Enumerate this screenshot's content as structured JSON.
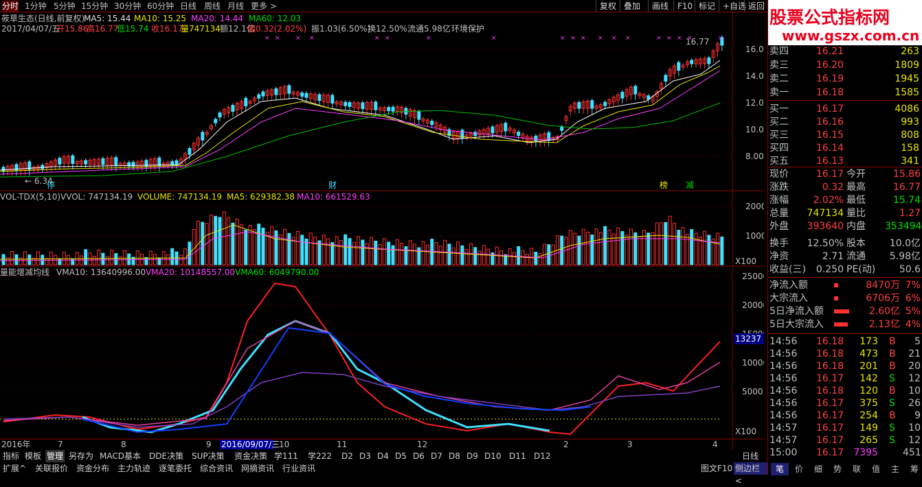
{
  "topbar": {
    "periods": [
      "分时",
      "1分钟",
      "5分钟",
      "15分钟",
      "30分钟",
      "60分钟",
      "日线",
      "周线",
      "月线",
      "更多 >"
    ],
    "active_index": 0,
    "right_buttons": [
      "复权",
      "叠加",
      "画线",
      "F10",
      "标记",
      "+自选",
      "返回"
    ]
  },
  "kline_info": {
    "name_line": "莜草生态(日线,前复权)",
    "ma5": "MA5: 15.44",
    "ma10": "MA10: 15.25",
    "ma20": "MA20: 14.44",
    "ma60": "MA60: 12.03",
    "date_line": "2017/04/07/五",
    "open": "开15.86",
    "high": "高16.77",
    "low": "低15.74",
    "close": "收16.17",
    "vol": "量747134",
    "amount": "额12.1亿",
    "range": "幅0.32(2.02%)",
    "amp": "振1.03(6.50%)",
    "turnover": "换12.50%",
    "float_cap": "流通5.98亿",
    "tag": "环境保护",
    "price_high_label": "16.77",
    "price_low_label": "6.34",
    "yaxis": [
      "16.00",
      "14.00",
      "12.00",
      "10.00",
      "8.00"
    ],
    "markers": [
      "停",
      "财",
      "榜",
      "减"
    ]
  },
  "vol_info": {
    "title": "VOL-TDX(5,10)",
    "vvol": "VVOL: 747134.19",
    "volume": "VOLUME: 747134.19",
    "ma5": "MA5: 629382.38",
    "ma10": "MA10: 661529.63",
    "yaxis": [
      "20000",
      "10000",
      "X100"
    ]
  },
  "ind_info": {
    "title": "量能增减均线",
    "vma10": "VMA10: 13640996.00",
    "vma20": "VMA20: 10148557.00",
    "vma60": "VMA60: 6049790.00",
    "yaxis": [
      "25000",
      "20000",
      "15000",
      "10000",
      "5000",
      "X100"
    ],
    "current": "13237"
  },
  "xaxis": {
    "labels": [
      "2016年",
      "7",
      "8",
      "9",
      "2016/09/07/三",
      "10",
      "11",
      "12",
      "2",
      "3",
      "4"
    ],
    "right": "日线"
  },
  "bottom": {
    "row1": [
      "指标",
      "模板",
      "管理",
      "另存为",
      "MACD基本",
      "DDE决策",
      "SUP决策",
      "资金决策",
      "学111",
      "学222",
      "D2",
      "D3",
      "D4",
      "D5",
      "D6",
      "D7",
      "D8",
      "D9",
      "D10",
      "D11",
      "D12"
    ],
    "row2": [
      "扩展^",
      "关联报价",
      "资金分布",
      "主力轨迹",
      "逐笔委托",
      "综合资讯",
      "网摘资讯",
      "行业资讯"
    ],
    "right": "图文F10",
    "side": "侧边栏<"
  },
  "quote": {
    "logo1": "股票公式指标网",
    "logo2": "www.gszx.com.cn",
    "asks": [
      {
        "label": "卖四",
        "price": "16.21",
        "vol": "263"
      },
      {
        "label": "卖三",
        "price": "16.20",
        "vol": "1809"
      },
      {
        "label": "卖二",
        "price": "16.19",
        "vol": "1945"
      },
      {
        "label": "卖一",
        "price": "16.18",
        "vol": "1585"
      }
    ],
    "bids": [
      {
        "label": "买一",
        "price": "16.17",
        "vol": "4086"
      },
      {
        "label": "买二",
        "price": "16.16",
        "vol": "993"
      },
      {
        "label": "买三",
        "price": "16.15",
        "vol": "808"
      },
      {
        "label": "买四",
        "price": "16.14",
        "vol": "158"
      },
      {
        "label": "买五",
        "price": "16.13",
        "vol": "341"
      }
    ],
    "stats": [
      {
        "l1": "现价",
        "v1": "16.17",
        "l2": "今开",
        "v2": "15.86"
      },
      {
        "l1": "涨跌",
        "v1": "0.32",
        "l2": "最高",
        "v2": "16.77"
      },
      {
        "l1": "涨幅",
        "v1": "2.02%",
        "l2": "最低",
        "v2": "15.74"
      },
      {
        "l1": "总量",
        "v1": "747134",
        "l2": "量比",
        "v2": "1.27"
      },
      {
        "l1": "外盘",
        "v1": "393640",
        "l2": "内盘",
        "v2": "353494"
      },
      {
        "l1": "换手",
        "v1": "12.50%",
        "l2": "股本",
        "v2": "10.0亿"
      },
      {
        "l1": "净资",
        "v1": "2.71",
        "l2": "流通",
        "v2": "5.98亿"
      },
      {
        "l1": "收益(三)",
        "v1": "0.250",
        "l2": "PE(动)",
        "v2": "50.6"
      }
    ],
    "flows": [
      {
        "label": "净流入额",
        "value": "8470万",
        "pct": "7%"
      },
      {
        "label": "大宗流入",
        "value": "6706万",
        "pct": "6%"
      },
      {
        "label": "5日净流入额",
        "value": "2.60亿",
        "pct": "5%"
      },
      {
        "label": "5日大宗流入",
        "value": "2.13亿",
        "pct": "4%"
      }
    ],
    "ticks": [
      {
        "t": "14:56",
        "p": "16.18",
        "v": "173",
        "d": "B",
        "n": "5"
      },
      {
        "t": "14:56",
        "p": "16.18",
        "v": "473",
        "d": "B",
        "n": "21"
      },
      {
        "t": "14:56",
        "p": "16.18",
        "v": "201",
        "d": "B",
        "n": "20"
      },
      {
        "t": "14:56",
        "p": "16.17",
        "v": "142",
        "d": "S",
        "n": "12"
      },
      {
        "t": "14:56",
        "p": "16.18",
        "v": "120",
        "d": "B",
        "n": "10"
      },
      {
        "t": "14:56",
        "p": "16.17",
        "v": "375",
        "d": "S",
        "n": "26"
      },
      {
        "t": "14:56",
        "p": "16.17",
        "v": "254",
        "d": "B",
        "n": "9"
      },
      {
        "t": "14:57",
        "p": "16.17",
        "v": "149",
        "d": "S",
        "n": "10"
      },
      {
        "t": "14:57",
        "p": "16.17",
        "v": "265",
        "d": "S",
        "n": "12"
      },
      {
        "t": "15:00",
        "p": "16.17",
        "v": "7395",
        "d": "",
        "n": "451"
      }
    ],
    "tabs": [
      "笔",
      "价",
      "细",
      "势",
      "联",
      "值",
      "主",
      "筹"
    ]
  }
}
